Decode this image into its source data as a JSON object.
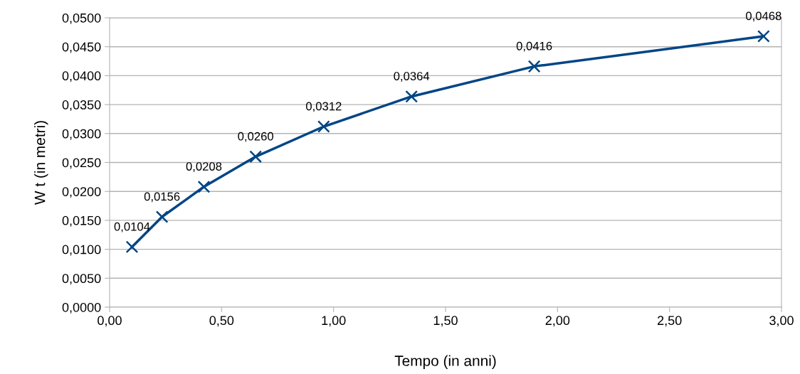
{
  "chart_data": {
    "type": "line",
    "xlabel": "Tempo (in anni)",
    "ylabel": "W t (in metri)",
    "x": [
      0.1,
      0.234,
      0.421,
      0.652,
      0.956,
      1.348,
      1.896,
      2.92
    ],
    "series": [
      {
        "color": "#004586",
        "values": [
          0.0104,
          0.0156,
          0.0208,
          0.026,
          0.0312,
          0.0364,
          0.0416,
          0.0468
        ],
        "value_labels": [
          "0,0104",
          "0,0156",
          "0,0208",
          "0,0260",
          "0,0312",
          "0,0364",
          "0,0416",
          "0,0468"
        ]
      }
    ],
    "marker": "cross",
    "line_style": "solid",
    "grid": "y",
    "xlim": [
      0,
      3
    ],
    "ylim": [
      0,
      0.05
    ],
    "xticks": [
      {
        "value": 0,
        "label": "0,00"
      },
      {
        "value": 0.5,
        "label": "0,50"
      },
      {
        "value": 1,
        "label": "1,00"
      },
      {
        "value": 1.5,
        "label": "1,50"
      },
      {
        "value": 2,
        "label": "2,00"
      },
      {
        "value": 2.5,
        "label": "2,50"
      },
      {
        "value": 3,
        "label": "3,00"
      }
    ],
    "yticks": [
      {
        "value": 0,
        "label": "0,0000"
      },
      {
        "value": 0.005,
        "label": "0,0050"
      },
      {
        "value": 0.01,
        "label": "0,0100"
      },
      {
        "value": 0.015,
        "label": "0,0150"
      },
      {
        "value": 0.02,
        "label": "0,0200"
      },
      {
        "value": 0.025,
        "label": "0,0250"
      },
      {
        "value": 0.03,
        "label": "0,0300"
      },
      {
        "value": 0.035,
        "label": "0,0350"
      },
      {
        "value": 0.04,
        "label": "0,0400"
      },
      {
        "value": 0.045,
        "label": "0,0450"
      },
      {
        "value": 0.05,
        "label": "0,0500"
      }
    ]
  }
}
